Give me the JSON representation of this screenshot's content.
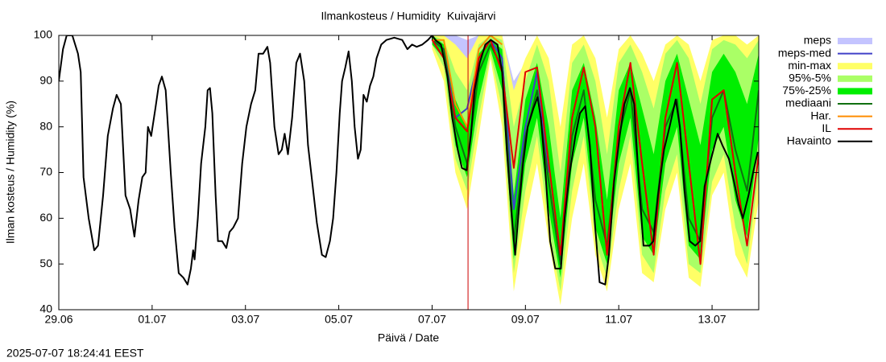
{
  "chart_data": {
    "type": "line",
    "title": "Ilmankosteus / Humidity  Kuivajärvi",
    "x_label": "Päivä / Date",
    "y_label": "Ilman kosteus / Humidity (%)",
    "timestamp": "2025-07-07 18:24:41 EEST",
    "xlim": [
      0,
      15
    ],
    "xticks": [
      {
        "value": 0,
        "label": "29.06"
      },
      {
        "value": 2,
        "label": "01.07"
      },
      {
        "value": 4,
        "label": "03.07"
      },
      {
        "value": 6,
        "label": "05.07"
      },
      {
        "value": 8,
        "label": "07.07"
      },
      {
        "value": 10,
        "label": "09.07"
      },
      {
        "value": 12,
        "label": "11.07"
      },
      {
        "value": 14,
        "label": "13.07"
      }
    ],
    "ylim": [
      40,
      100
    ],
    "yticks": [
      40,
      50,
      60,
      70,
      80,
      90,
      100
    ],
    "now_marker": 8.77,
    "now_color": "#cc0000",
    "legend": "right",
    "series": [
      {
        "name": "meps",
        "color": "#c4c4ff",
        "x": [
          8.0,
          8.25,
          8.5,
          8.75,
          9.0,
          9.25,
          9.5,
          9.75,
          10.0,
          10.25,
          10.5
        ],
        "low": [
          97,
          96,
          80,
          82,
          90,
          98,
          92,
          60,
          78,
          90,
          68
        ],
        "high": [
          100,
          100,
          100,
          99,
          100,
          100,
          100,
          90,
          94,
          99,
          92
        ]
      },
      {
        "name": "meps-med",
        "color": "#4040c8",
        "x": [
          8.0,
          8.25,
          8.5,
          8.75,
          9.0,
          9.25,
          9.5,
          9.75,
          10.0,
          10.25,
          10.5
        ],
        "values": [
          99,
          97,
          82,
          84,
          95,
          99,
          95,
          62,
          80,
          92,
          70
        ]
      },
      {
        "name": "min-max",
        "color": "#ffff66",
        "x": [
          8.0,
          8.25,
          8.5,
          8.75,
          9.0,
          9.25,
          9.5,
          9.75,
          10.0,
          10.25,
          10.5,
          10.75,
          11.0,
          11.25,
          11.5,
          11.75,
          12.0,
          12.25,
          12.5,
          12.75,
          13.0,
          13.25,
          13.5,
          13.75,
          14.0,
          14.25,
          14.5,
          14.75,
          15.0
        ],
        "low": [
          97,
          90,
          70,
          62,
          78,
          95,
          80,
          44,
          60,
          72,
          55,
          41,
          60,
          72,
          52,
          44,
          62,
          72,
          48,
          46,
          62,
          70,
          47,
          45,
          65,
          70,
          52,
          47,
          64
        ],
        "high": [
          100,
          100,
          98,
          95,
          100,
          100,
          100,
          88,
          95,
          100,
          95,
          80,
          98,
          100,
          95,
          82,
          97,
          100,
          96,
          90,
          98,
          100,
          98,
          90,
          99,
          100,
          100,
          98,
          100
        ]
      },
      {
        "name": "95%-5%",
        "color": "#aaff66",
        "x": [
          8.0,
          8.25,
          8.5,
          8.75,
          9.0,
          9.25,
          9.5,
          9.75,
          10.0,
          10.25,
          10.5,
          10.75,
          11.0,
          11.25,
          11.5,
          11.75,
          12.0,
          12.25,
          12.5,
          12.75,
          13.0,
          13.25,
          13.5,
          13.75,
          14.0,
          14.25,
          14.5,
          14.75,
          15.0
        ],
        "low": [
          98,
          93,
          73,
          66,
          82,
          96,
          84,
          48,
          66,
          78,
          58,
          44,
          66,
          78,
          55,
          47,
          66,
          78,
          52,
          48,
          66,
          74,
          50,
          48,
          68,
          74,
          58,
          50,
          70
        ],
        "high": [
          100,
          99,
          92,
          88,
          98,
          100,
          99,
          80,
          90,
          98,
          90,
          70,
          94,
          98,
          90,
          74,
          94,
          98,
          92,
          84,
          96,
          99,
          95,
          85,
          97,
          99,
          98,
          95,
          99
        ]
      },
      {
        "name": "75%-25%",
        "color": "#00ee00",
        "x": [
          8.0,
          8.25,
          8.5,
          8.75,
          9.0,
          9.25,
          9.5,
          9.75,
          10.0,
          10.25,
          10.5,
          10.75,
          11.0,
          11.25,
          11.5,
          11.75,
          12.0,
          12.25,
          12.5,
          12.75,
          13.0,
          13.25,
          13.5,
          13.75,
          14.0,
          14.25,
          14.5,
          14.75,
          15.0
        ],
        "low": [
          98,
          95,
          76,
          69,
          86,
          97,
          88,
          51,
          72,
          82,
          62,
          47,
          72,
          82,
          58,
          50,
          72,
          82,
          56,
          52,
          72,
          80,
          54,
          51,
          75,
          80,
          64,
          56,
          78
        ],
        "high": [
          100,
          98,
          86,
          80,
          96,
          99,
          97,
          65,
          86,
          94,
          80,
          60,
          88,
          94,
          82,
          64,
          88,
          94,
          84,
          74,
          90,
          96,
          86,
          76,
          92,
          96,
          92,
          85,
          96
        ]
      },
      {
        "name": "mediaani",
        "color": "#107010",
        "x": [
          8.0,
          8.25,
          8.5,
          8.75,
          9.0,
          9.25,
          9.5,
          9.75,
          10.0,
          10.25,
          10.5,
          10.75,
          11.0,
          11.25,
          11.5,
          11.75,
          12.0,
          12.25,
          12.5,
          12.75,
          13.0,
          13.25,
          13.5,
          13.75,
          14.0,
          14.25,
          14.5,
          14.75,
          15.0
        ],
        "values": [
          99,
          97,
          80,
          72,
          92,
          98,
          93,
          55,
          78,
          88,
          68,
          50,
          78,
          88,
          64,
          54,
          78,
          88,
          62,
          57,
          80,
          86,
          60,
          55,
          82,
          88,
          75,
          66,
          88
        ]
      },
      {
        "name": "Har.",
        "color": "#ff8c00",
        "x": [
          8.0,
          8.25,
          8.5,
          8.75,
          9.0,
          9.25,
          9.5
        ],
        "values": [
          99,
          99,
          85,
          80,
          97,
          100,
          98
        ]
      },
      {
        "name": "IL",
        "color": "#e00000",
        "x": [
          8.0,
          8.25,
          8.5,
          8.75,
          9.0,
          9.25,
          9.5,
          9.75,
          10.0,
          10.25,
          10.5,
          10.75,
          11.0,
          11.25,
          11.5,
          11.75,
          12.0,
          12.25,
          12.5,
          12.75,
          13.0,
          13.25,
          13.5,
          13.75,
          14.0,
          14.25,
          14.5,
          14.75,
          15.0
        ],
        "values": [
          99,
          95,
          82,
          79,
          95,
          99,
          92,
          71,
          92,
          93,
          72,
          52,
          82,
          93,
          80,
          52,
          80,
          94,
          72,
          52,
          82,
          94,
          72,
          50,
          86,
          88,
          70,
          54,
          74
        ]
      },
      {
        "name": "Havainto",
        "color": "#000000",
        "x": [
          0,
          0.09,
          0.17,
          0.29,
          0.41,
          0.47,
          0.53,
          0.64,
          0.76,
          0.84,
          0.95,
          1.05,
          1.16,
          1.24,
          1.33,
          1.43,
          1.53,
          1.62,
          1.71,
          1.79,
          1.86,
          1.91,
          1.98,
          2.07,
          2.14,
          2.21,
          2.29,
          2.4,
          2.48,
          2.57,
          2.67,
          2.76,
          2.83,
          2.88,
          2.91,
          2.98,
          3.05,
          3.14,
          3.19,
          3.24,
          3.29,
          3.36,
          3.41,
          3.5,
          3.59,
          3.66,
          3.74,
          3.84,
          3.93,
          4.02,
          4.12,
          4.21,
          4.28,
          4.38,
          4.47,
          4.53,
          4.62,
          4.71,
          4.78,
          4.84,
          4.91,
          5.0,
          5.09,
          5.17,
          5.26,
          5.34,
          5.43,
          5.53,
          5.64,
          5.72,
          5.81,
          5.88,
          5.95,
          6.02,
          6.07,
          6.14,
          6.21,
          6.28,
          6.34,
          6.41,
          6.47,
          6.53,
          6.6,
          6.67,
          6.74,
          6.81,
          6.91,
          7.02,
          7.19,
          7.36,
          7.47,
          7.57,
          7.67,
          7.79,
          7.91,
          8.0,
          8.07,
          8.19,
          8.33,
          8.43,
          8.55,
          8.64,
          8.74,
          8.83,
          8.91,
          9.02,
          9.14,
          9.26,
          9.4,
          9.5,
          9.6,
          9.71,
          9.78,
          9.86,
          9.95,
          10.05,
          10.17,
          10.26,
          10.33,
          10.43,
          10.53,
          10.64,
          10.76,
          10.84,
          10.95,
          11.07,
          11.17,
          11.28,
          11.38,
          11.48,
          11.59,
          11.71,
          11.79,
          11.9,
          12.02,
          12.12,
          12.24,
          12.33,
          12.43,
          12.53,
          12.66,
          12.74,
          12.84,
          12.97,
          13.09,
          13.22,
          13.31,
          13.41,
          13.52,
          13.64,
          13.74,
          13.84,
          13.98,
          14.12,
          14.22,
          14.36,
          14.47,
          14.57,
          14.66,
          14.78,
          14.88,
          14.98
        ],
        "values": [
          90,
          97,
          100,
          100,
          96,
          92,
          69,
          60,
          53,
          54,
          65,
          78,
          84,
          87,
          85,
          65,
          62,
          56,
          64,
          69,
          70,
          80,
          78,
          84,
          89,
          91,
          88,
          70,
          58,
          48,
          47,
          45.5,
          49,
          53,
          51,
          60,
          72,
          80,
          88,
          88.5,
          83,
          65,
          55,
          55,
          53.5,
          57,
          58,
          60,
          72,
          80,
          85,
          88,
          96,
          96,
          97.5,
          94,
          80,
          74,
          75,
          78.5,
          74,
          82,
          94,
          96,
          90,
          76,
          68,
          59,
          52,
          51.5,
          55,
          60,
          70,
          83,
          90,
          93,
          96.5,
          90,
          80,
          73,
          75,
          87,
          85.5,
          89,
          91,
          95,
          98,
          99,
          99.5,
          99,
          97,
          98,
          97.5,
          98,
          99,
          100,
          99,
          98,
          91,
          82,
          75,
          71,
          70.5,
          78,
          88,
          94,
          98,
          99,
          98,
          92,
          75,
          60,
          52,
          62,
          72,
          80,
          84,
          86.5,
          82,
          70,
          55,
          49,
          49,
          60,
          70,
          78,
          83,
          84.5,
          76,
          60,
          46,
          45.5,
          52,
          68,
          78,
          85,
          88.5,
          85,
          68,
          54,
          54,
          55,
          65,
          75,
          80,
          86,
          80,
          66,
          55,
          54,
          55,
          67,
          73,
          78.5,
          76,
          73,
          68,
          63,
          60,
          65,
          70,
          74.5
        ]
      }
    ]
  }
}
